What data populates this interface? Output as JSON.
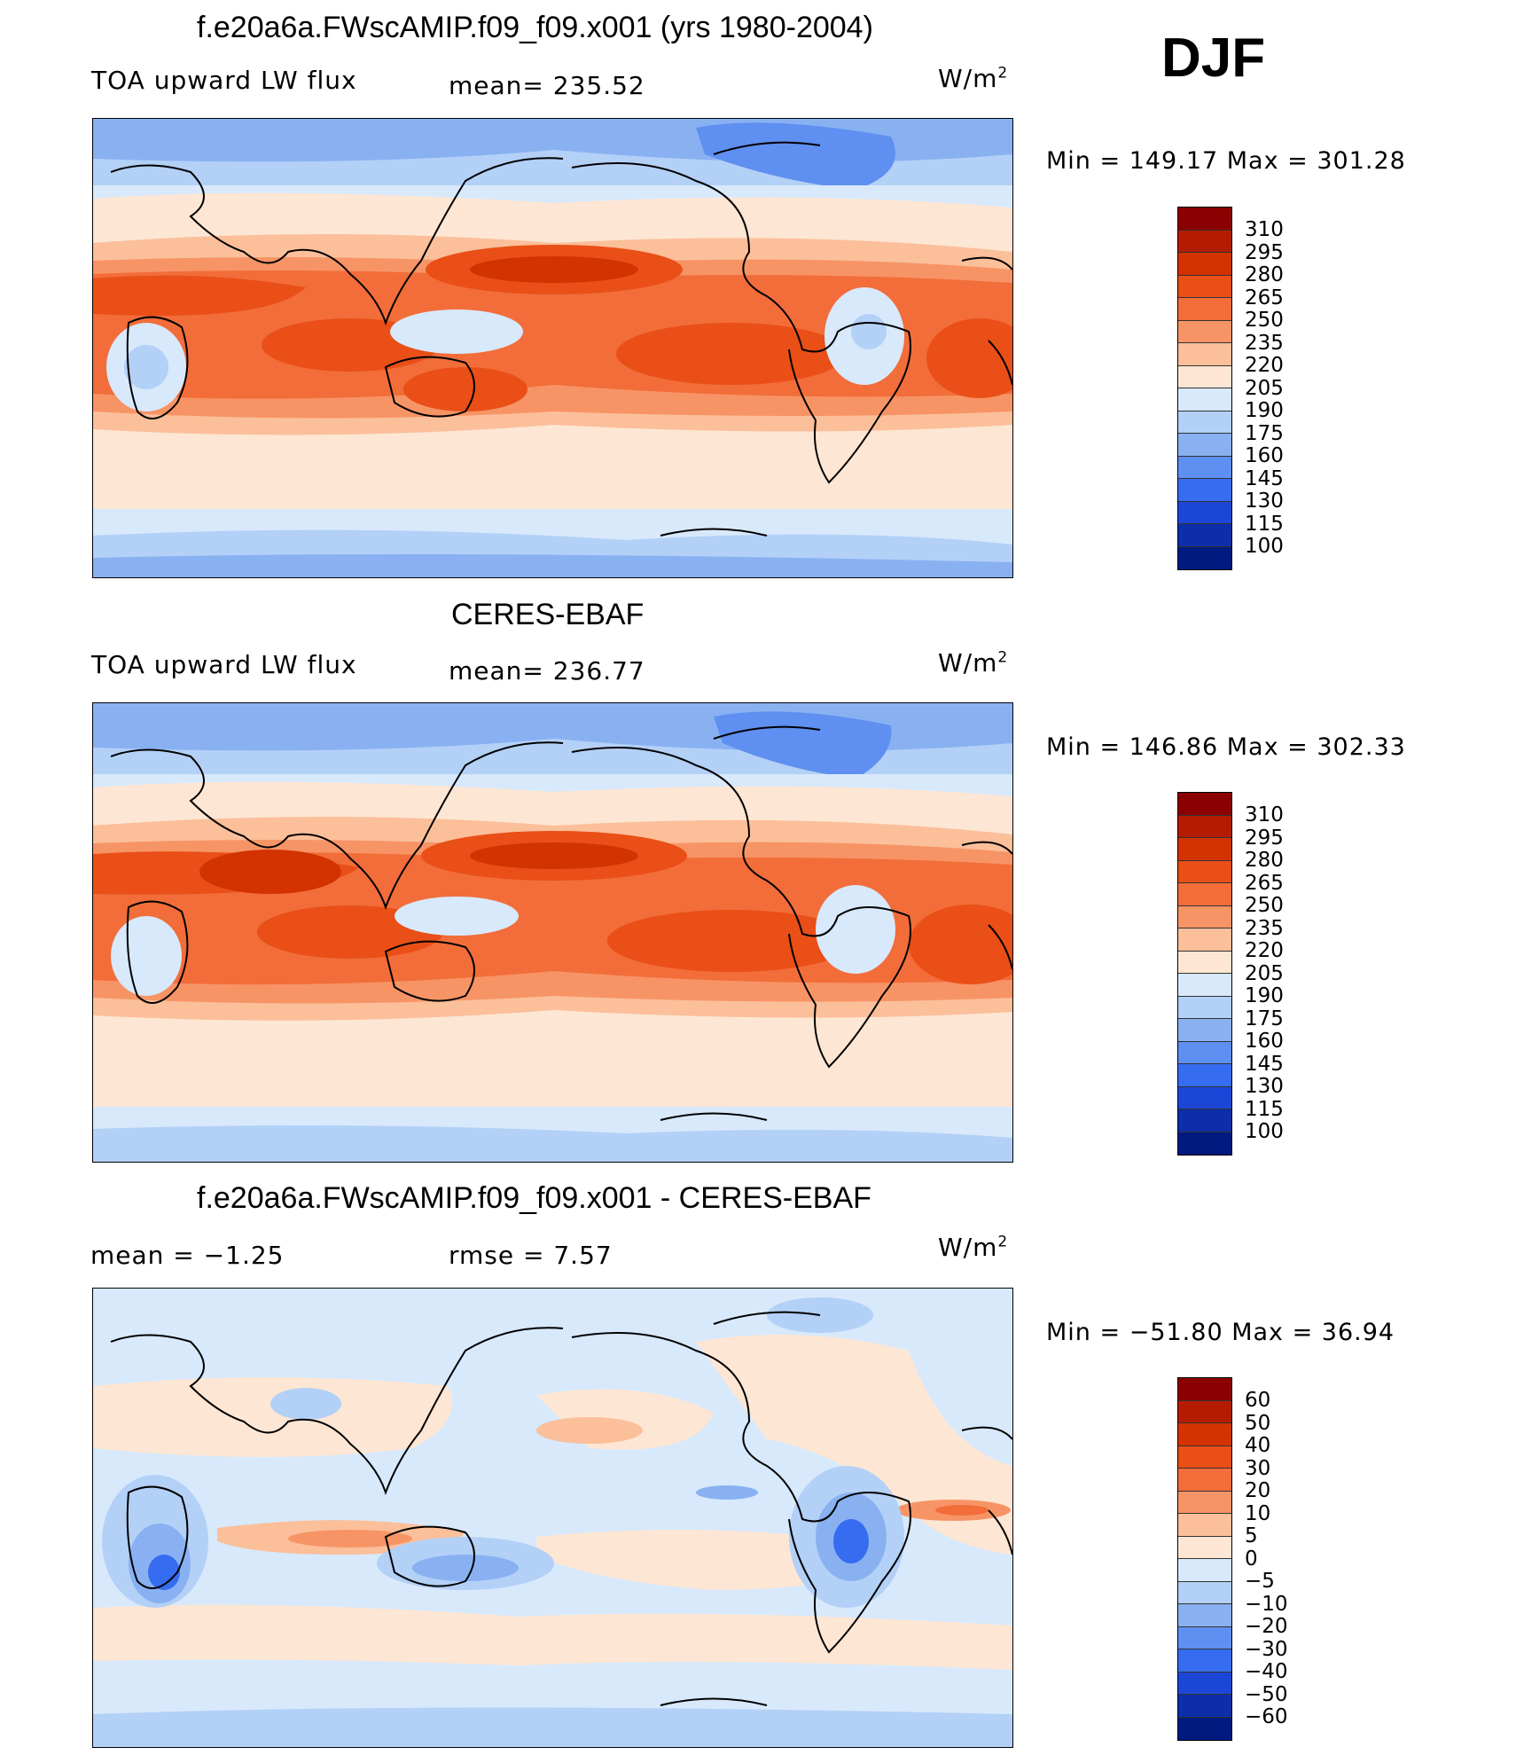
{
  "season": "DJF",
  "unit_label": "W/m",
  "unit_sup": "2",
  "panels": [
    {
      "title": "f.e20a6a.FWscAMIP.f09_f09.x001 (yrs 1980-2004)",
      "left_label": "TOA upward LW flux",
      "center_label": "mean=  235.52",
      "minmax": "Min  =  149.17  Max  =  301.28",
      "colorbar_labels": [
        "310",
        "295",
        "280",
        "265",
        "250",
        "235",
        "220",
        "205",
        "190",
        "175",
        "160",
        "145",
        "130",
        "115",
        "100"
      ]
    },
    {
      "title": "CERES-EBAF",
      "left_label": "TOA upward LW flux",
      "center_label": "mean=  236.77",
      "minmax": "Min  =  146.86  Max  =  302.33",
      "colorbar_labels": [
        "310",
        "295",
        "280",
        "265",
        "250",
        "235",
        "220",
        "205",
        "190",
        "175",
        "160",
        "145",
        "130",
        "115",
        "100"
      ]
    },
    {
      "title": "f.e20a6a.FWscAMIP.f09_f09.x001 - CERES-EBAF",
      "left_label": "mean =   −1.25",
      "center_label": "rmse =     7.57",
      "minmax": "Min  =  −51.80  Max  =    36.94",
      "colorbar_labels": [
        "60",
        "50",
        "40",
        "30",
        "20",
        "10",
        "5",
        "0",
        "−5",
        "−10",
        "−20",
        "−30",
        "−40",
        "−50",
        "−60"
      ]
    }
  ],
  "colorbar_colors": [
    "#8b0000",
    "#b31c00",
    "#d23300",
    "#e94f16",
    "#f26d3a",
    "#f79466",
    "#fbbf9a",
    "#fde6d4",
    "#d8e9fb",
    "#b3d0f7",
    "#89b1f2",
    "#5f8ff0",
    "#366cf0",
    "#1c47d6",
    "#0d2ea8",
    "#001a80"
  ],
  "map_colors": {
    "warm_strong": "#d23300",
    "warm": "#e94f16",
    "warm_mid": "#f26d3a",
    "warm_light": "#f79466",
    "warm_pale": "#fbbf9a",
    "neutral": "#fde6d4",
    "cool_pale": "#d8e9fb",
    "cool": "#b3d0f7",
    "cool_mid": "#89b1f2",
    "cool_strong": "#5f8ff0",
    "cool_deep": "#366cf0",
    "coast": "#000000"
  }
}
